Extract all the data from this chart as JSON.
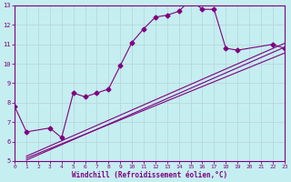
{
  "title": "",
  "xlabel": "Windchill (Refroidissement éolien,°C)",
  "ylabel": "",
  "bg_color": "#c5eef0",
  "grid_color": "#b8d8dc",
  "line_color": "#800080",
  "x_min": 0,
  "x_max": 23,
  "y_min": 5,
  "y_max": 13,
  "x_ticks": [
    0,
    1,
    2,
    3,
    4,
    5,
    6,
    7,
    8,
    9,
    10,
    11,
    12,
    13,
    14,
    15,
    16,
    17,
    18,
    19,
    20,
    21,
    22,
    23
  ],
  "y_ticks": [
    5,
    6,
    7,
    8,
    9,
    10,
    11,
    12,
    13
  ],
  "data_line": {
    "x": [
      0,
      1,
      3,
      4,
      5,
      6,
      7,
      8,
      9,
      10,
      11,
      12,
      13,
      14,
      15,
      16,
      17,
      18,
      19,
      22,
      23
    ],
    "y": [
      7.8,
      6.5,
      6.7,
      6.2,
      8.5,
      8.3,
      8.5,
      8.7,
      9.9,
      11.1,
      11.8,
      12.4,
      12.5,
      12.7,
      13.3,
      12.8,
      12.8,
      10.8,
      10.7,
      11.0,
      10.8
    ]
  },
  "reg_line1": {
    "x": [
      1,
      23
    ],
    "y": [
      5.05,
      10.85
    ]
  },
  "reg_line2": {
    "x": [
      1,
      23
    ],
    "y": [
      5.15,
      10.55
    ]
  },
  "reg_line3": {
    "x": [
      1,
      23
    ],
    "y": [
      5.25,
      11.05
    ]
  },
  "marker": "D",
  "marker_size": 2.5,
  "line_width": 0.8
}
